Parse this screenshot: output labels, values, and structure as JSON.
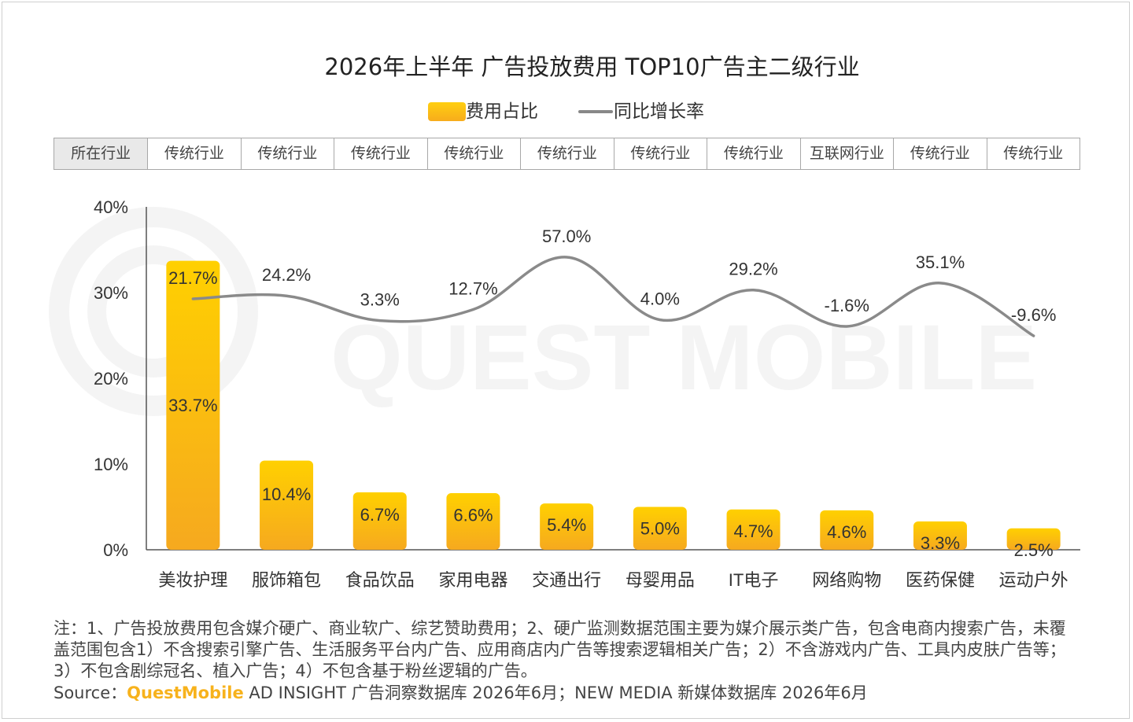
{
  "title": "2026年上半年 广告投放费用 TOP10广告主二级行业",
  "legend": {
    "bar_label": "费用占比",
    "line_label": "同比增长率"
  },
  "industry_row": {
    "header": "所在行业",
    "cells": [
      "传统行业",
      "传统行业",
      "传统行业",
      "传统行业",
      "传统行业",
      "传统行业",
      "传统行业",
      "互联网行业",
      "传统行业",
      "传统行业"
    ]
  },
  "watermark": "QUEST MOBILE",
  "chart_data": {
    "type": "bar",
    "categories": [
      "美妆护理",
      "服饰箱包",
      "食品饮品",
      "家用电器",
      "交通出行",
      "母婴用品",
      "IT电子",
      "网络购物",
      "医药保健",
      "运动户外"
    ],
    "series": [
      {
        "name": "费用占比",
        "type": "bar",
        "values": [
          33.7,
          10.4,
          6.7,
          6.6,
          5.4,
          5.0,
          4.7,
          4.6,
          3.3,
          2.5
        ],
        "labels": [
          "33.7%",
          "10.4%",
          "6.7%",
          "6.6%",
          "5.4%",
          "5.0%",
          "4.7%",
          "4.6%",
          "3.3%",
          "2.5%"
        ]
      },
      {
        "name": "同比增长率",
        "type": "line",
        "values": [
          21.7,
          24.2,
          3.3,
          12.7,
          57.0,
          4.0,
          29.2,
          -1.6,
          35.1,
          -9.6
        ],
        "labels": [
          "21.7%",
          "24.2%",
          "3.3%",
          "12.7%",
          "57.0%",
          "4.0%",
          "29.2%",
          "-1.6%",
          "35.1%",
          "-9.6%"
        ]
      }
    ],
    "y_ticks": [
      "0%",
      "10%",
      "20%",
      "30%",
      "40%"
    ],
    "ylim": [
      0,
      40
    ],
    "bar_color": "#f9b91a",
    "line_color": "#8a8a8a"
  },
  "note": "注：1、广告投放费用包含媒介硬广、商业软广、综艺赞助费用；2、硬广监测数据范围主要为媒介展示类广告，包含电商内搜索广告，未覆盖范围包含1）不含搜索引擎广告、生活服务平台内广告、应用商店内广告等搜索逻辑相关广告；2）不含游戏内广告、工具内皮肤广告等；3）不包含剧综冠名、植入广告；4）不包含基于粉丝逻辑的广告。",
  "source": {
    "prefix": "Source：",
    "brand": "QuestMobile",
    "rest": " AD INSIGHT 广告洞察数据库 2026年6月；NEW MEDIA 新媒体数据库 2026年6月"
  }
}
